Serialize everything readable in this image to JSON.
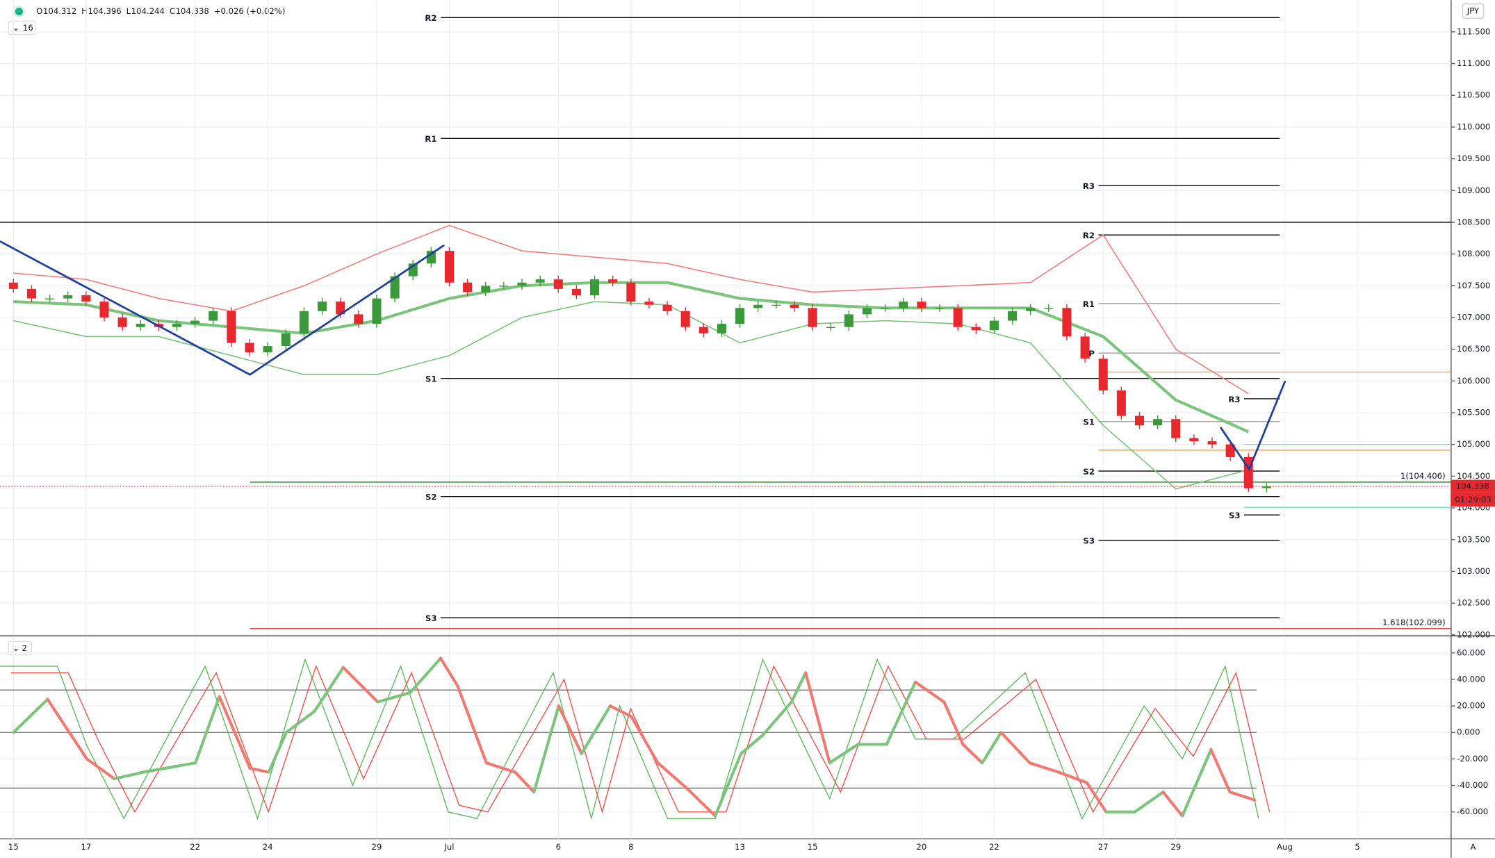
{
  "chart_data": {
    "type": "candlestick",
    "currency": "JPY",
    "header": {
      "items": [
        {
          "label": "O",
          "value": 104.312
        },
        {
          "label": "H",
          "value": 104.396
        },
        {
          "label": "L",
          "value": 104.244
        },
        {
          "label": "C",
          "value": 104.338
        }
      ],
      "change": "+0.026 (+0.02%)",
      "indicators": "16"
    },
    "countdown": "01:29:03",
    "scale_mode": "A",
    "up_color": "#3a9a3a",
    "down_color": "#e8282f",
    "xlim": [
      -0.37,
      39.58
    ],
    "xticks": [
      {
        "value": 0,
        "label": "15"
      },
      {
        "value": 2,
        "label": "17"
      },
      {
        "value": 5,
        "label": "22"
      },
      {
        "value": 7,
        "label": "24"
      },
      {
        "value": 10,
        "label": "29"
      },
      {
        "value": 12,
        "label": "Jul"
      },
      {
        "value": 15,
        "label": "6"
      },
      {
        "value": 17,
        "label": "8"
      },
      {
        "value": 20,
        "label": "13"
      },
      {
        "value": 22,
        "label": "15"
      },
      {
        "value": 25,
        "label": "20"
      },
      {
        "value": 27,
        "label": "22"
      },
      {
        "value": 30,
        "label": "27"
      },
      {
        "value": 32,
        "label": "29"
      },
      {
        "value": 35,
        "label": "Aug"
      },
      {
        "value": 37,
        "label": "5"
      }
    ],
    "ylim": [
      102,
      112
    ],
    "yticks": [
      {
        "value": 102,
        "label": "102.000"
      },
      {
        "value": 102.5,
        "label": "102.500"
      },
      {
        "value": 103,
        "label": "103.000"
      },
      {
        "value": 103.5,
        "label": "103.500"
      },
      {
        "value": 104,
        "label": "104.000"
      },
      {
        "value": 104.5,
        "label": "104.500"
      },
      {
        "value": 105,
        "label": "105.000"
      },
      {
        "value": 105.5,
        "label": "105.500"
      },
      {
        "value": 106,
        "label": "106.000"
      },
      {
        "value": 106.5,
        "label": "106.500"
      },
      {
        "value": 107,
        "label": "107.000"
      },
      {
        "value": 107.5,
        "label": "107.500"
      },
      {
        "value": 108,
        "label": "108.000"
      },
      {
        "value": 108.5,
        "label": "108.500"
      },
      {
        "value": 109,
        "label": "109.000"
      },
      {
        "value": 109.5,
        "label": "109.500"
      },
      {
        "value": 110,
        "label": "110.000"
      },
      {
        "value": 110.5,
        "label": "110.500"
      },
      {
        "value": 111,
        "label": "111.000"
      },
      {
        "value": 111.5,
        "label": "111.500"
      }
    ],
    "grid": true,
    "candles": {
      "x": [
        0,
        0.5,
        1,
        1.5,
        2,
        2.5,
        3,
        3.5,
        4,
        4.5,
        5,
        5.5,
        6,
        6.5,
        7,
        7.5,
        8,
        8.5,
        9,
        9.5,
        10,
        10.5,
        11,
        11.5,
        12,
        12.5,
        13,
        13.5,
        14,
        14.5,
        15,
        15.5,
        16,
        16.5,
        17,
        17.5,
        18,
        18.5,
        19,
        19.5,
        20,
        20.5,
        21,
        21.5,
        22,
        22.5,
        23,
        23.5,
        24,
        24.5,
        25,
        25.5,
        26,
        26.5,
        27,
        27.5,
        28,
        28.5,
        29,
        29.5,
        30,
        30.5,
        31,
        31.5,
        32,
        32.5,
        33,
        33.5,
        34,
        34.5
      ],
      "open": [
        107.55,
        107.45,
        107.3,
        107.3,
        107.35,
        107.25,
        107,
        106.85,
        106.9,
        106.85,
        106.9,
        106.95,
        107.1,
        106.6,
        106.45,
        106.55,
        106.75,
        107.1,
        107.25,
        107.05,
        106.9,
        107.3,
        107.65,
        107.85,
        108.05,
        107.55,
        107.4,
        107.5,
        107.5,
        107.55,
        107.6,
        107.45,
        107.35,
        107.6,
        107.55,
        107.25,
        107.2,
        107.1,
        106.85,
        106.75,
        106.9,
        107.15,
        107.2,
        107.2,
        107.15,
        106.85,
        106.85,
        107.05,
        107.15,
        107.15,
        107.25,
        107.15,
        107.15,
        106.85,
        106.8,
        106.95,
        107.1,
        107.15,
        107.15,
        106.7,
        106.35,
        105.85,
        105.45,
        105.3,
        105.4,
        105.1,
        105.05,
        105,
        104.8,
        104.312
      ],
      "high": [
        107.61,
        107.51,
        107.36,
        107.41,
        107.41,
        107.31,
        107.06,
        106.96,
        106.96,
        106.96,
        107.01,
        107.16,
        107.16,
        106.66,
        106.61,
        106.81,
        107.16,
        107.31,
        107.31,
        107.11,
        107.36,
        107.71,
        107.91,
        108.11,
        108.11,
        107.61,
        107.56,
        107.56,
        107.61,
        107.66,
        107.66,
        107.51,
        107.66,
        107.66,
        107.61,
        107.31,
        107.26,
        107.16,
        106.91,
        106.96,
        107.21,
        107.26,
        107.26,
        107.26,
        107.21,
        106.91,
        107.11,
        107.21,
        107.21,
        107.31,
        107.31,
        107.21,
        107.21,
        106.91,
        107.01,
        107.16,
        107.21,
        107.21,
        107.21,
        106.76,
        106.41,
        105.91,
        105.51,
        105.46,
        105.46,
        105.16,
        105.11,
        105.06,
        104.86,
        104.396
      ],
      "low": [
        107.39,
        107.24,
        107.24,
        107.24,
        107.19,
        106.94,
        106.79,
        106.79,
        106.79,
        106.79,
        106.84,
        106.89,
        106.54,
        106.39,
        106.39,
        106.49,
        106.69,
        107.04,
        106.99,
        106.84,
        106.84,
        107.24,
        107.59,
        107.79,
        107.49,
        107.34,
        107.34,
        107.44,
        107.44,
        107.49,
        107.39,
        107.29,
        107.29,
        107.49,
        107.19,
        107.14,
        107.04,
        106.79,
        106.69,
        106.69,
        106.84,
        107.09,
        107.14,
        107.09,
        106.79,
        106.79,
        106.79,
        106.99,
        107.09,
        107.09,
        107.09,
        107.09,
        106.79,
        106.74,
        106.74,
        106.89,
        107.04,
        107.09,
        106.64,
        106.29,
        105.79,
        105.39,
        105.24,
        105.24,
        105.04,
        104.99,
        104.94,
        104.74,
        104.25,
        104.244
      ],
      "close": [
        107.45,
        107.3,
        107.3,
        107.35,
        107.25,
        107,
        106.85,
        106.9,
        106.85,
        106.9,
        106.95,
        107.1,
        106.6,
        106.45,
        106.55,
        106.75,
        107.1,
        107.25,
        107.05,
        106.9,
        107.3,
        107.65,
        107.85,
        108.05,
        107.55,
        107.4,
        107.5,
        107.5,
        107.55,
        107.6,
        107.45,
        107.35,
        107.6,
        107.55,
        107.25,
        107.2,
        107.1,
        106.85,
        106.75,
        106.9,
        107.15,
        107.2,
        107.2,
        107.15,
        106.85,
        106.85,
        107.05,
        107.15,
        107.15,
        107.25,
        107.15,
        107.15,
        106.85,
        106.8,
        106.95,
        107.1,
        107.15,
        107.15,
        106.7,
        106.35,
        105.85,
        105.45,
        105.3,
        105.4,
        105.1,
        105.05,
        105,
        104.8,
        104.31,
        104.338
      ]
    },
    "overlay_x": [
      0,
      2,
      4,
      6,
      8,
      10,
      12,
      14,
      16,
      18,
      20,
      22,
      24,
      26,
      28,
      30,
      32,
      34
    ],
    "overlays": [
      {
        "color": "#f08080",
        "width": 1.2,
        "values": [
          107.7,
          107.6,
          107.3,
          107.1,
          107.5,
          108,
          108.45,
          108.05,
          107.95,
          107.85,
          107.6,
          107.4,
          107.45,
          107.5,
          107.55,
          108.3,
          106.5,
          105.8
        ]
      },
      {
        "color": "#7cc47c",
        "width": 3,
        "values": [
          107.25,
          107.2,
          106.95,
          106.85,
          106.75,
          106.95,
          107.3,
          107.5,
          107.55,
          107.55,
          107.3,
          107.2,
          107.15,
          107.15,
          107.15,
          106.7,
          105.7,
          105.2
        ]
      },
      {
        "color": "#7cc47c",
        "width": 1.2,
        "values": [
          106.95,
          106.7,
          106.7,
          106.4,
          106.1,
          106.1,
          106.4,
          107,
          107.25,
          107.2,
          106.6,
          106.9,
          106.95,
          106.9,
          106.6,
          105.3,
          104.3,
          104.6
        ]
      }
    ],
    "drawings": [
      {
        "color": "#1f3f99",
        "x": [
          -0.37,
          6.51,
          11.86
        ],
        "y": [
          108.2,
          106.1,
          108.14
        ]
      },
      {
        "color": "#1f3f99",
        "x": [
          33.23,
          34.02,
          35.01
        ],
        "y": [
          105.27,
          104.61,
          106
        ]
      }
    ],
    "pivots": [
      {
        "label": "R2",
        "value": 111.725,
        "x1": 11.76,
        "x2": 34.86,
        "color": "#000000"
      },
      {
        "label": "R1",
        "value": 109.82,
        "x1": 11.76,
        "x2": 34.86,
        "color": "#000000"
      },
      {
        "label": "S1",
        "value": 106.04,
        "x1": 11.76,
        "x2": 34.86,
        "color": "#000000"
      },
      {
        "label": "S2",
        "value": 104.18,
        "x1": 11.76,
        "x2": 34.86,
        "color": "#000000"
      },
      {
        "label": "S3",
        "value": 102.27,
        "x1": 11.76,
        "x2": 34.86,
        "color": "#000000"
      },
      {
        "label": "R3",
        "value": 109.08,
        "x1": 29.87,
        "x2": 34.86,
        "color": "#000000"
      },
      {
        "label": "R2",
        "value": 108.3,
        "x1": 29.87,
        "x2": 34.86,
        "color": "#000000"
      },
      {
        "label": "R1",
        "value": 107.22,
        "x1": 29.87,
        "x2": 34.86,
        "color": "#999999"
      },
      {
        "label": "P",
        "value": 106.44,
        "x1": 29.87,
        "x2": 34.86,
        "color": "#999999"
      },
      {
        "label": "S1",
        "value": 105.36,
        "x1": 29.87,
        "x2": 34.86,
        "color": "#999999"
      },
      {
        "label": "S2",
        "value": 104.58,
        "x1": 29.87,
        "x2": 34.86,
        "color": "#000000"
      },
      {
        "label": "S3",
        "value": 103.49,
        "x1": 29.87,
        "x2": 34.86,
        "color": "#000000"
      },
      {
        "label": "R3",
        "value": 105.72,
        "x1": 33.88,
        "x2": 34.86,
        "color": "#000000"
      },
      {
        "label": "S3",
        "value": 103.89,
        "x1": 33.88,
        "x2": 34.86,
        "color": "#000000"
      }
    ],
    "hlines": [
      {
        "value": 108.5,
        "color": "#000000"
      },
      {
        "value": 106.14,
        "x1": 29.87,
        "color": "#f5a04a"
      },
      {
        "value": 104.91,
        "x1": 29.87,
        "color": "#f5a04a"
      },
      {
        "value": 105,
        "x1": 33.88,
        "color": "#7fdcb8"
      },
      {
        "value": 104.01,
        "x1": 33.88,
        "color": "#7fdcb8"
      },
      {
        "value": 104.406,
        "x1": 6.51,
        "color": "#2e7d32",
        "label": "1(104.406)"
      },
      {
        "value": 102.099,
        "x1": 6.51,
        "color": "#e8282f",
        "label": "1.618(102.099)"
      }
    ],
    "oscillator": {
      "indicators": "2",
      "ylim": [
        -80.3,
        72.2
      ],
      "yticks": [
        {
          "value": 60,
          "label": "60.000"
        },
        {
          "value": 40,
          "label": "40.000"
        },
        {
          "value": 20,
          "label": "20.000"
        },
        {
          "value": 0,
          "label": "0.000"
        },
        {
          "value": -20,
          "label": "-20.000"
        },
        {
          "value": -40,
          "label": "-40.000"
        },
        {
          "value": -60,
          "label": "-60.000"
        }
      ],
      "levels": [
        32,
        0,
        -42
      ],
      "main": {
        "up_color": "#7cc47c",
        "down_color": "#f07a72",
        "width": 3,
        "x": [
          0,
          0.94,
          2.02,
          2.78,
          3.57,
          5.01,
          5.67,
          6.51,
          7.03,
          7.51,
          8.29,
          9.08,
          10.03,
          10.92,
          11.76,
          12.23,
          13.02,
          13.81,
          14.33,
          15.01,
          15.64,
          16.43,
          17.01,
          17.74,
          18.53,
          19.32,
          20.03,
          20.63,
          21.42,
          21.81,
          22.47,
          23.25,
          24.04,
          24.83,
          25.62,
          26.14,
          26.67,
          27.19,
          27.98,
          28.77,
          29.55,
          30.08,
          30.87,
          31.65,
          32.18,
          32.97,
          33.49,
          34.17
        ],
        "values": [
          0,
          25,
          -20,
          -35,
          -30,
          -23,
          27,
          -27,
          -30,
          0,
          16,
          49,
          23,
          30,
          56,
          35,
          -23,
          -30,
          -45,
          20,
          -16,
          20,
          12,
          -23,
          -42,
          -63,
          -16,
          -2,
          23,
          45,
          -23,
          -9,
          -9,
          38,
          23,
          -9,
          -23,
          0,
          -23,
          -30,
          -38,
          -60,
          -60,
          -45,
          -63,
          -13,
          -45,
          -51
        ]
      },
      "lines": [
        {
          "color": "#5cb85c",
          "x": [
            -0.37,
            1.21,
            2.02,
            3.04,
            5.28,
            6.72,
            8.03,
            9.34,
            10.66,
            11.97,
            12.76,
            14.86,
            15.91,
            16.69,
            18.01,
            19.32,
            20.63,
            22.47,
            23.78,
            24.83,
            25.88,
            27.85,
            29.42,
            31.13,
            32.18,
            33.36,
            34.28
          ],
          "values": [
            50,
            50,
            -10,
            -65,
            50,
            -65,
            55,
            -40,
            50,
            -60,
            -65,
            45,
            -65,
            20,
            -65,
            -65,
            55,
            -50,
            55,
            -5,
            -5,
            45,
            -65,
            20,
            -20,
            50,
            -65
          ]
        },
        {
          "color": "#e8504a",
          "x": [
            -0.07,
            1.51,
            2.32,
            3.34,
            5.58,
            7.02,
            8.33,
            9.64,
            10.96,
            12.27,
            13.06,
            15.16,
            16.21,
            16.99,
            18.31,
            19.62,
            20.93,
            22.77,
            24.08,
            25.13,
            26.18,
            28.15,
            29.72,
            31.43,
            32.48,
            33.66,
            34.58
          ],
          "values": [
            45,
            45,
            -5,
            -60,
            45,
            -60,
            50,
            -35,
            45,
            -55,
            -60,
            40,
            -60,
            18,
            -60,
            -60,
            50,
            -45,
            50,
            -5,
            -5,
            40,
            -60,
            18,
            -18,
            45,
            -60
          ]
        }
      ]
    }
  }
}
